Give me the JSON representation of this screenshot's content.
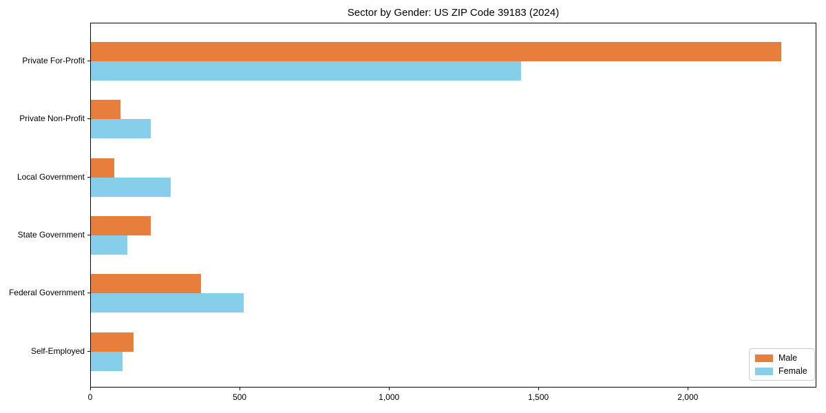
{
  "title": "Sector by Gender: US ZIP Code 39183 (2024)",
  "chart_data": {
    "type": "bar",
    "orientation": "horizontal",
    "title": "Sector by Gender: US ZIP Code 39183 (2024)",
    "categories": [
      "Private For-Profit",
      "Private Non-Profit",
      "Local Government",
      "State Government",
      "Federal Government",
      "Self-Employed"
    ],
    "series": [
      {
        "name": "Male",
        "color": "#E87E3C",
        "values": [
          2310,
          100,
          78,
          200,
          368,
          143
        ]
      },
      {
        "name": "Female",
        "color": "#87CEEB",
        "values": [
          1440,
          200,
          267,
          122,
          511,
          105
        ]
      }
    ],
    "xlabel": "",
    "ylabel": "",
    "xlim": [
      0,
      2430
    ],
    "xticks": [
      {
        "value": 0,
        "label": "0"
      },
      {
        "value": 500,
        "label": "500"
      },
      {
        "value": 1000,
        "label": "1,000"
      },
      {
        "value": 1500,
        "label": "1,500"
      },
      {
        "value": 2000,
        "label": "2,000"
      }
    ],
    "grid": false,
    "legend_position": "lower right"
  }
}
